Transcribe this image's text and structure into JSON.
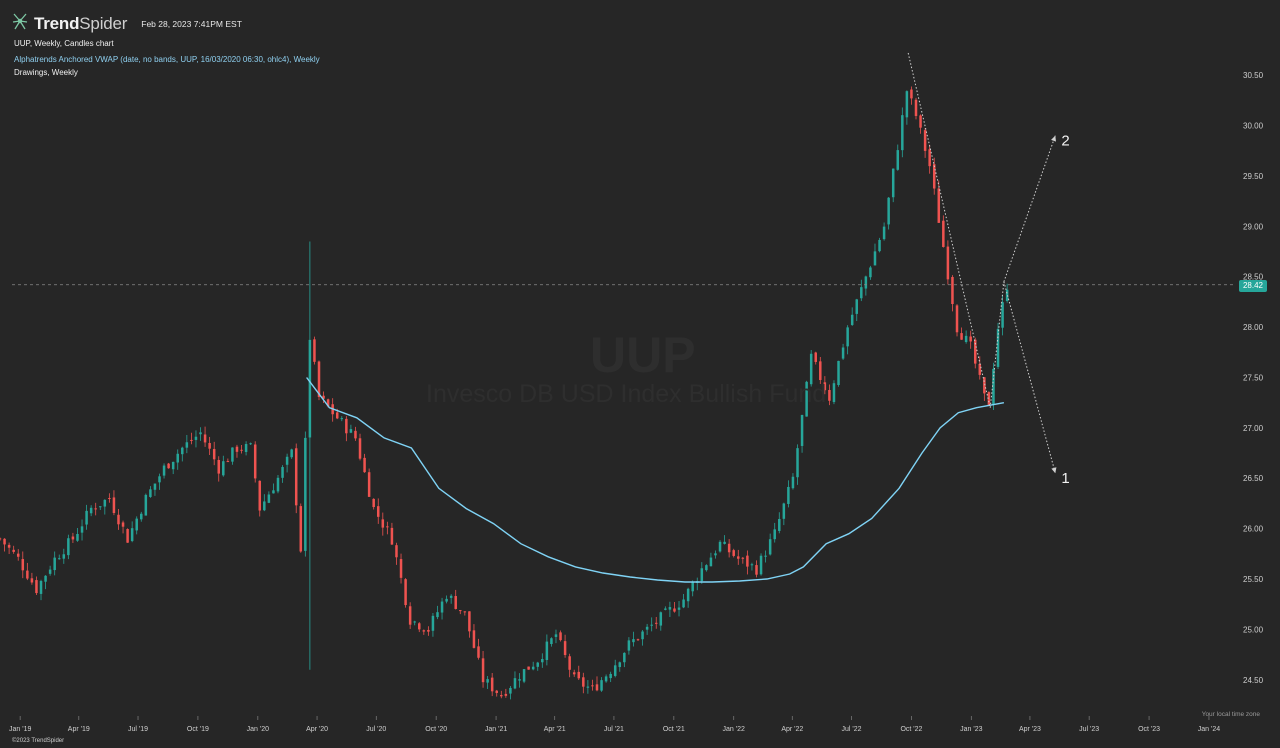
{
  "header": {
    "brand_bold": "Trend",
    "brand_light": "Spider",
    "timestamp": "Feb 28, 2023 7:41PM EST",
    "chart_line": "UUP, Weekly, Candles chart",
    "indicator_line": "Alphatrends Anchored VWAP (date, no bands, UUP, 16/03/2020 06:30, ohlc4), Weekly",
    "drawings_line": "Drawings, Weekly"
  },
  "watermark": {
    "symbol": "UUP",
    "name": "Invesco DB USD Index Bullish Fund"
  },
  "footer": {
    "copyright": "©2023 TrendSpider",
    "timezone_note": "Your local time zone"
  },
  "colors": {
    "up": "#26a69a",
    "down": "#ef5350",
    "vwap": "#7fd3f5",
    "background": "#262626"
  },
  "icons": {
    "logo": "trendspider-logo-icon"
  },
  "chart_data": {
    "type": "candlestick",
    "title": "UUP, Weekly, Candles chart",
    "x_axis_labels": [
      "Jan '19",
      "Apr '19",
      "Jul '19",
      "Oct '19",
      "Jan '20",
      "Apr '20",
      "Jul '20",
      "Oct '20",
      "Jan '21",
      "Apr '21",
      "Jul '21",
      "Oct '21",
      "Jan '22",
      "Apr '22",
      "Jul '22",
      "Oct '22",
      "Jan '23",
      "Apr '23",
      "Jul '23",
      "Oct '23",
      "Jan '24"
    ],
    "y_ticks": [
      24.5,
      25.0,
      25.5,
      26.0,
      26.5,
      27.0,
      27.5,
      28.0,
      28.5,
      29.0,
      29.5,
      30.0,
      30.5
    ],
    "y_tick_labels": [
      "24.50",
      "25.00",
      "25.50",
      "26.00",
      "26.50",
      "27.00",
      "27.50",
      "28.00",
      "28.50",
      "29.00",
      "29.50",
      "30.00",
      "30.50"
    ],
    "ylim": [
      24.2,
      30.75
    ],
    "xlim": [
      "2018-12-01",
      "2024-02-10"
    ],
    "last_price": 28.42,
    "last_price_label": "28.42",
    "close_path": [
      [
        "2018-12-01",
        25.9
      ],
      [
        "2018-12-29",
        25.7
      ],
      [
        "2019-01-26",
        25.4
      ],
      [
        "2019-02-23",
        25.7
      ],
      [
        "2019-03-23",
        25.9
      ],
      [
        "2019-04-20",
        26.2
      ],
      [
        "2019-05-18",
        26.3
      ],
      [
        "2019-06-15",
        25.9
      ],
      [
        "2019-07-13",
        26.3
      ],
      [
        "2019-08-10",
        26.6
      ],
      [
        "2019-09-07",
        26.8
      ],
      [
        "2019-10-05",
        26.95
      ],
      [
        "2019-11-02",
        26.6
      ],
      [
        "2019-11-30",
        26.8
      ],
      [
        "2019-12-21",
        26.8
      ],
      [
        "2020-01-04",
        26.2
      ],
      [
        "2020-02-01",
        26.5
      ],
      [
        "2020-02-22",
        26.75
      ],
      [
        "2020-03-07",
        25.8
      ],
      [
        "2020-03-21",
        27.9
      ],
      [
        "2020-04-04",
        27.3
      ],
      [
        "2020-05-02",
        27.1
      ],
      [
        "2020-05-30",
        26.9
      ],
      [
        "2020-06-27",
        26.2
      ],
      [
        "2020-07-25",
        25.9
      ],
      [
        "2020-08-22",
        25.1
      ],
      [
        "2020-09-19",
        25.0
      ],
      [
        "2020-10-17",
        25.35
      ],
      [
        "2020-11-14",
        25.15
      ],
      [
        "2020-12-12",
        24.5
      ],
      [
        "2021-01-09",
        24.35
      ],
      [
        "2021-02-06",
        24.55
      ],
      [
        "2021-03-06",
        24.7
      ],
      [
        "2021-04-03",
        24.95
      ],
      [
        "2021-05-01",
        24.5
      ],
      [
        "2021-05-29",
        24.4
      ],
      [
        "2021-06-26",
        24.6
      ],
      [
        "2021-07-24",
        24.85
      ],
      [
        "2021-08-21",
        25.0
      ],
      [
        "2021-09-18",
        25.15
      ],
      [
        "2021-10-16",
        25.3
      ],
      [
        "2021-11-13",
        25.6
      ],
      [
        "2021-12-11",
        25.85
      ],
      [
        "2022-01-08",
        25.7
      ],
      [
        "2022-02-05",
        25.6
      ],
      [
        "2022-03-05",
        25.95
      ],
      [
        "2022-04-02",
        26.5
      ],
      [
        "2022-04-30",
        27.7
      ],
      [
        "2022-05-28",
        27.3
      ],
      [
        "2022-06-25",
        28.0
      ],
      [
        "2022-07-23",
        28.5
      ],
      [
        "2022-08-20",
        29.0
      ],
      [
        "2022-09-10",
        29.8
      ],
      [
        "2022-09-24",
        30.35
      ],
      [
        "2022-10-08",
        30.1
      ],
      [
        "2022-10-29",
        29.6
      ],
      [
        "2022-11-19",
        28.8
      ],
      [
        "2022-12-10",
        28.0
      ],
      [
        "2022-12-31",
        27.8
      ],
      [
        "2023-01-21",
        27.3
      ],
      [
        "2023-01-28",
        27.25
      ],
      [
        "2023-02-11",
        28.0
      ],
      [
        "2023-02-25",
        28.42
      ]
    ],
    "series": [
      {
        "name": "Alphatrends Anchored VWAP",
        "points": [
          [
            "2020-03-16",
            27.5
          ],
          [
            "2020-04-20",
            27.2
          ],
          [
            "2020-06-01",
            27.1
          ],
          [
            "2020-07-13",
            26.9
          ],
          [
            "2020-08-24",
            26.8
          ],
          [
            "2020-10-05",
            26.4
          ],
          [
            "2020-11-16",
            26.2
          ],
          [
            "2020-12-28",
            26.05
          ],
          [
            "2021-02-08",
            25.85
          ],
          [
            "2021-03-22",
            25.72
          ],
          [
            "2021-05-03",
            25.62
          ],
          [
            "2021-06-14",
            25.56
          ],
          [
            "2021-07-26",
            25.52
          ],
          [
            "2021-09-06",
            25.49
          ],
          [
            "2021-10-18",
            25.47
          ],
          [
            "2021-11-29",
            25.47
          ],
          [
            "2022-01-10",
            25.48
          ],
          [
            "2022-02-21",
            25.5
          ],
          [
            "2022-03-28",
            25.55
          ],
          [
            "2022-04-18",
            25.62
          ],
          [
            "2022-05-23",
            25.85
          ],
          [
            "2022-06-27",
            25.95
          ],
          [
            "2022-08-01",
            26.1
          ],
          [
            "2022-09-12",
            26.4
          ],
          [
            "2022-10-17",
            26.75
          ],
          [
            "2022-11-14",
            27.0
          ],
          [
            "2022-12-12",
            27.15
          ],
          [
            "2023-01-09",
            27.2
          ],
          [
            "2023-02-20",
            27.25
          ]
        ]
      }
    ],
    "drawings": [
      {
        "type": "dotted_line",
        "from": [
          "2022-09-26",
          30.72
        ],
        "to": [
          "2023-01-30",
          27.2
        ]
      },
      {
        "type": "dotted_line",
        "from": [
          "2023-01-30",
          27.2
        ],
        "to": [
          "2023-02-20",
          28.45
        ]
      },
      {
        "type": "dotted_arrow",
        "label": "1",
        "from": [
          "2023-02-20",
          28.45
        ],
        "to": [
          "2023-05-10",
          26.55
        ]
      },
      {
        "type": "dotted_arrow",
        "label": "2",
        "from": [
          "2023-02-20",
          28.45
        ],
        "to": [
          "2023-05-10",
          29.9
        ]
      }
    ]
  }
}
